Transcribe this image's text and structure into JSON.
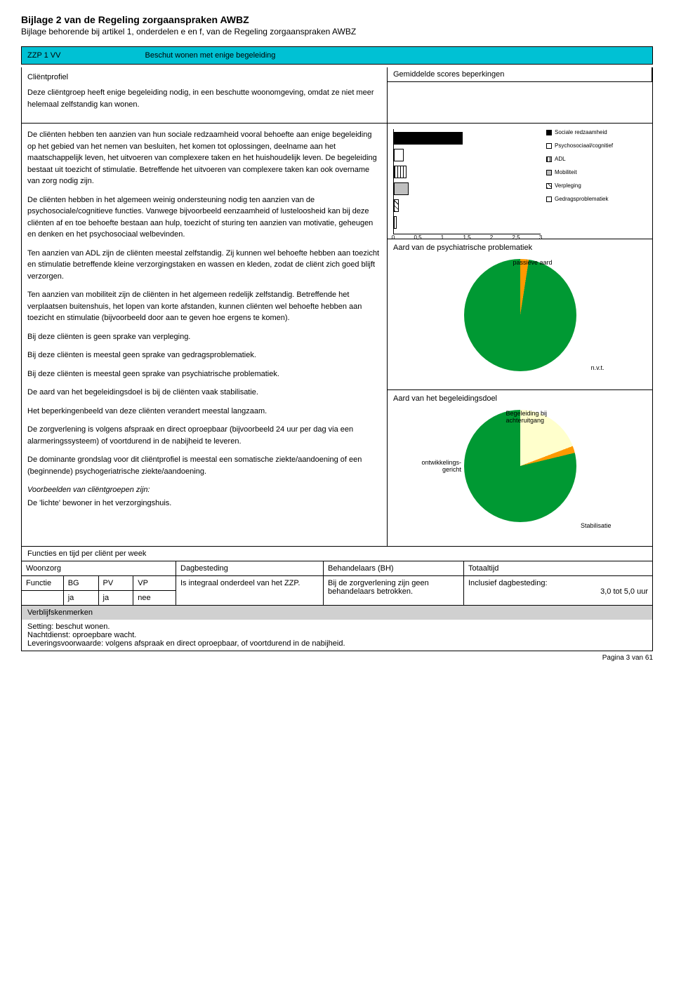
{
  "header": {
    "title": "Bijlage 2 van de Regeling zorgaanspraken AWBZ",
    "subtitle": "Bijlage behorende bij artikel 1, onderdelen e en f, van de Regeling zorgaanspraken AWBZ"
  },
  "zzp": {
    "code": "ZZP 1 VV",
    "label": "Beschut wonen met enige begeleiding",
    "band_color": "#00c1d4"
  },
  "profile": {
    "heading": "Cliëntprofiel",
    "intro": "Deze cliëntgroep heeft enige begeleiding nodig, in een beschutte woonomgeving, omdat ze niet meer helemaal zelfstandig kan wonen.",
    "p1": "De cliënten hebben ten aanzien van hun sociale redzaamheid vooral behoefte aan enige begeleiding op het gebied van het nemen van besluiten, het komen tot oplossingen, deelname aan het maatschappelijk leven, het uitvoeren van complexere taken en het huishoudelijk leven. De begeleiding bestaat uit toezicht of stimulatie. Betreffende het uitvoeren van complexere taken kan ook overname van zorg nodig zijn.",
    "p2": "De cliënten hebben in het algemeen weinig ondersteuning nodig ten aanzien van de psychosociale/cognitieve functies. Vanwege bijvoorbeeld eenzaamheid of lusteloosheid kan bij deze cliënten af en toe behoefte bestaan aan hulp, toezicht of sturing ten aanzien van motivatie, geheugen en denken en het psychosociaal welbevinden.",
    "p3": "Ten aanzien van ADL zijn de cliënten meestal zelfstandig. Zij kunnen wel behoefte hebben aan toezicht en stimulatie betreffende kleine verzorgingstaken en wassen en kleden, zodat de cliënt zich goed blijft verzorgen.",
    "p4": "Ten aanzien van mobiliteit zijn de cliënten in het algemeen redelijk zelfstandig. Betreffende het verplaatsen buitenshuis, het lopen van korte afstanden, kunnen cliënten wel behoefte hebben aan toezicht en stimulatie (bijvoorbeeld door aan te geven hoe ergens te komen).",
    "p5": "Bij deze cliënten is geen sprake van verpleging.",
    "p6": "Bij deze cliënten is meestal geen sprake van gedragsproblematiek.",
    "p7": "Bij deze cliënten is meestal geen sprake van psychiatrische problematiek.",
    "p8": "De aard van het begeleidingsdoel is bij de cliënten vaak stabilisatie.",
    "p9": "Het beperkingenbeeld van deze cliënten verandert meestal langzaam.",
    "p10": "De zorgverlening is volgens afspraak en direct oproepbaar (bijvoorbeeld 24 uur per dag via een alarmeringssysteem) of voortdurend in de nabijheid te leveren.",
    "p11": "De dominante grondslag voor dit cliëntprofiel is meestal een somatische ziekte/aandoening of een (beginnende) psychogeriatrische ziekte/aandoening.",
    "p12_intro": "Voorbeelden van cliëntgroepen zijn:",
    "p12_item": "De 'lichte' bewoner in het verzorgingshuis."
  },
  "scores": {
    "heading": "Gemiddelde scores beperkingen",
    "xmax": 3,
    "xticks": [
      "0",
      "0,5",
      "1",
      "1,5",
      "2",
      "2,5",
      "3"
    ],
    "bars": [
      {
        "label": "Sociale redzaamheid",
        "value": 1.4,
        "fill": "#000000"
      },
      {
        "label": "Psychosociaal/cognitief",
        "value": 0.2,
        "fill": "#ffffff"
      },
      {
        "label": "ADL",
        "value": 0.25,
        "fill": "hatch-v"
      },
      {
        "label": "Mobiliteit",
        "value": 0.3,
        "fill": "#bfbfbf"
      },
      {
        "label": "Verpleging",
        "value": 0.1,
        "fill": "hatch-d"
      },
      {
        "label": "Gedragsproblematiek",
        "value": 0.05,
        "fill": "#ffffff"
      }
    ]
  },
  "psych": {
    "heading": "Aard van de psychiatrische problematiek",
    "slices": [
      {
        "label": "passieve aard",
        "value": 8,
        "color": "#ff9900"
      },
      {
        "label": "n.v.t.",
        "value": 92,
        "color": "#009933"
      }
    ],
    "label_passive": "passieve aard",
    "label_nvt": "n.v.t."
  },
  "goal": {
    "heading": "Aard van het begeleidingsdoel",
    "slices": [
      {
        "label": "Begeleiding bij achteruitgang",
        "value": 22,
        "color": "#ffffcc"
      },
      {
        "label": "ontwikkelings-gericht",
        "value": 2,
        "color": "#ff9900"
      },
      {
        "label": "Stabilisatie",
        "value": 76,
        "color": "#009933"
      }
    ],
    "label_beg": "Begeleiding bij\nachteruitgang",
    "label_ont": "ontwikkelings-\ngericht",
    "label_stab": "Stabilisatie"
  },
  "functies": {
    "heading": "Functies en tijd per cliënt per week",
    "cols": {
      "woonzorg": "Woonzorg",
      "dagbesteding": "Dagbesteding",
      "behandelaars": "Behandelaars (BH)",
      "totaaltijd": "Totaaltijd"
    },
    "row_labels": {
      "functie": "Functie",
      "bg": "BG",
      "pv": "PV",
      "vp": "VP"
    },
    "row_values": {
      "bg": "ja",
      "pv": "ja",
      "vp": "nee"
    },
    "dagbesteding_text": "Is integraal onderdeel van het ZZP.",
    "behandelaars_text": "Bij de zorgverlening zijn geen behandelaars betrokken.",
    "totaaltijd_label": "Inclusief dagbesteding:",
    "totaaltijd_value": "3,0 tot 5,0 uur"
  },
  "verblijf": {
    "heading": "Verblijfskenmerken",
    "setting": "Setting: beschut wonen.",
    "nacht": "Nachtdienst: oproepbare wacht.",
    "lever": "Leveringsvoorwaarde: volgens afspraak en direct oproepbaar, of voortdurend in de nabijheid."
  },
  "page": "Pagina 3 van 61"
}
